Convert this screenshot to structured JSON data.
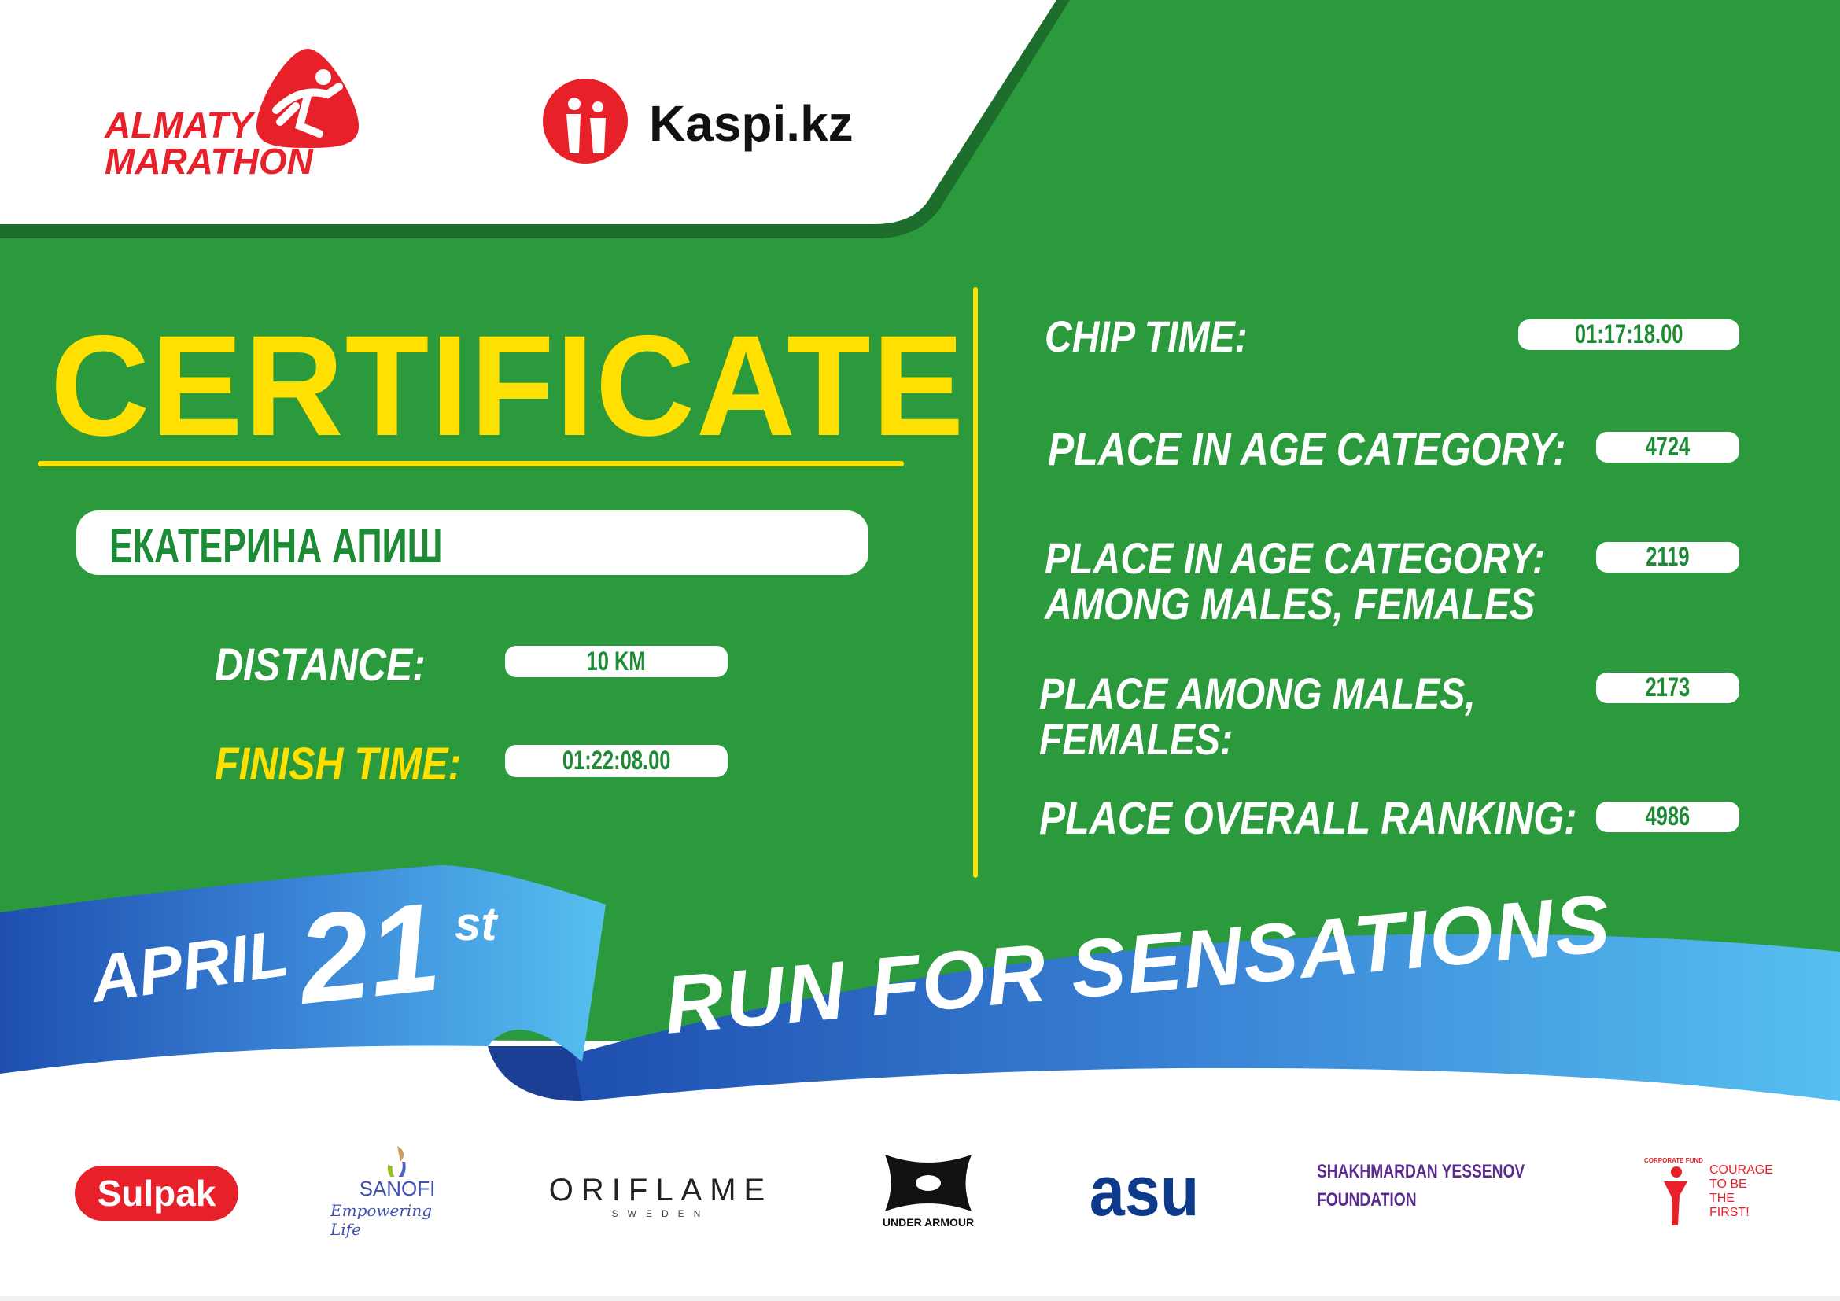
{
  "header": {
    "almaty_logo_text": [
      "ALMATY",
      "MARATHON"
    ],
    "kaspi_logo_text": "Kaspi.kz"
  },
  "certificate": {
    "title": "CERTIFICATE",
    "participant_name": "ЕКАТЕРИНА АПИШ",
    "distance_label": "DISTANCE:",
    "distance_value": "10 KM",
    "finish_time_label": "FINISH TIME:",
    "finish_time_value": "01:22:08.00"
  },
  "results": {
    "chip_time_label": "CHIP TIME:",
    "chip_time_value": "01:17:18.00",
    "age_category_label": "PLACE IN AGE CATEGORY:",
    "age_category_value": "4724",
    "age_category_gender_label_1": "PLACE IN AGE CATEGORY:",
    "age_category_gender_label_2": "AMONG MALES, FEMALES",
    "age_category_gender_value": "2119",
    "gender_label_1": "PLACE AMONG MALES,",
    "gender_label_2": "FEMALES:",
    "gender_value": "2173",
    "overall_label": "PLACE OVERALL RANKING:",
    "overall_value": "4986"
  },
  "banner": {
    "month": "APRIL",
    "day": "21",
    "suffix": "st",
    "slogan": "RUN FOR SENSATIONS"
  },
  "sponsors": [
    {
      "name": "Sulpak"
    },
    {
      "name": "SANOFI",
      "tagline": "Empowering Life"
    },
    {
      "name": "ORIFLAME",
      "tagline": "SWEDEN"
    },
    {
      "name": "UNDER ARMOUR"
    },
    {
      "name": "asu"
    },
    {
      "name": "SHAKHMARDAN YESSENOV",
      "tagline": "FOUNDATION"
    },
    {
      "name": "COURAGE TO BE THE FIRST!",
      "tagline": "CORPORATE FUND"
    }
  ],
  "colors": {
    "green": "#2a9a3c",
    "dark_green": "#1d6e2c",
    "yellow": "#ffe000",
    "red": "#e8202a",
    "blue": "#2f6fce",
    "light_blue": "#4fb8ec"
  }
}
